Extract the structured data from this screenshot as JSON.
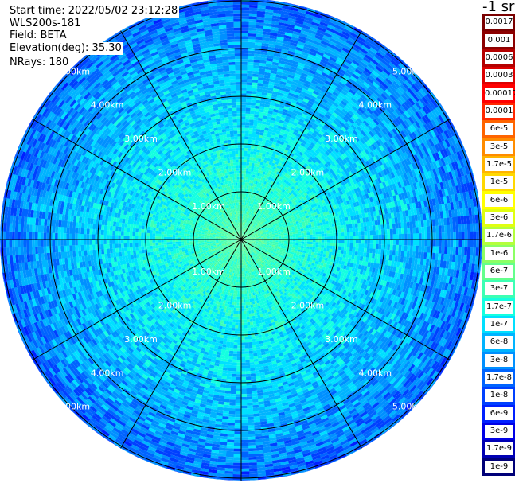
{
  "header": {
    "start_time": "Start time: 2022/05/02 23:12:28",
    "site": "WLS200s-181",
    "field": "Field: BETA",
    "elevation": "Elevation(deg): 35.30",
    "nrays": "NRays: 180"
  },
  "colorbar": {
    "unit": "-1 sr",
    "labels": [
      "0.0017",
      "0.001",
      "0.0006",
      "0.0003",
      "0.00017",
      "0.0001",
      "6e-5",
      "3e-5",
      "1.7e-5",
      "1e-5",
      "6e-6",
      "3e-6",
      "1.7e-6",
      "1e-6",
      "6e-7",
      "3e-7",
      "1.7e-7",
      "1e-7",
      "6e-8",
      "3e-8",
      "1.7e-8",
      "1e-8",
      "6e-9",
      "3e-9",
      "1.7e-9",
      "1e-9"
    ],
    "colors": [
      "#7a0000",
      "#8c0000",
      "#b40000",
      "#dc0000",
      "#ff0000",
      "#ff2800",
      "#ff6400",
      "#ff8c00",
      "#ffb400",
      "#ffd800",
      "#ffff00",
      "#e0ff10",
      "#b4ff3c",
      "#8cff64",
      "#64ff8c",
      "#3cffb4",
      "#14ffe0",
      "#00e0ff",
      "#00b4ff",
      "#0090ff",
      "#0064ff",
      "#0040ff",
      "#0020ff",
      "#0000e6",
      "#0000b4",
      "#000078"
    ]
  },
  "chart_data": {
    "type": "heatmap",
    "projection": "polar (PPI)",
    "field": "BETA",
    "units": "-1 sr",
    "nrays": 180,
    "range_rings_km": [
      1,
      2,
      3,
      4,
      5
    ],
    "ring_labels": [
      "1.00km",
      "2.00km",
      "3.00km",
      "4.00km",
      "5.00km"
    ],
    "max_range_km": 5.0,
    "spokes_deg": [
      0,
      30,
      60,
      90,
      120,
      150,
      180,
      210,
      240,
      270,
      300,
      330
    ],
    "colorbar_min": "1e-9",
    "colorbar_max": "0.0017",
    "log_scale": true,
    "approx_values_by_range": [
      {
        "range_km": 0.5,
        "value": "3e-7"
      },
      {
        "range_km": 1.5,
        "value": "1.7e-7"
      },
      {
        "range_km": 2.5,
        "value": "1e-7"
      },
      {
        "range_km": 3.5,
        "value": "6e-8"
      },
      {
        "range_km": 4.5,
        "value": "3e-8"
      },
      {
        "range_km": 5.0,
        "value": "1.7e-8"
      }
    ]
  }
}
